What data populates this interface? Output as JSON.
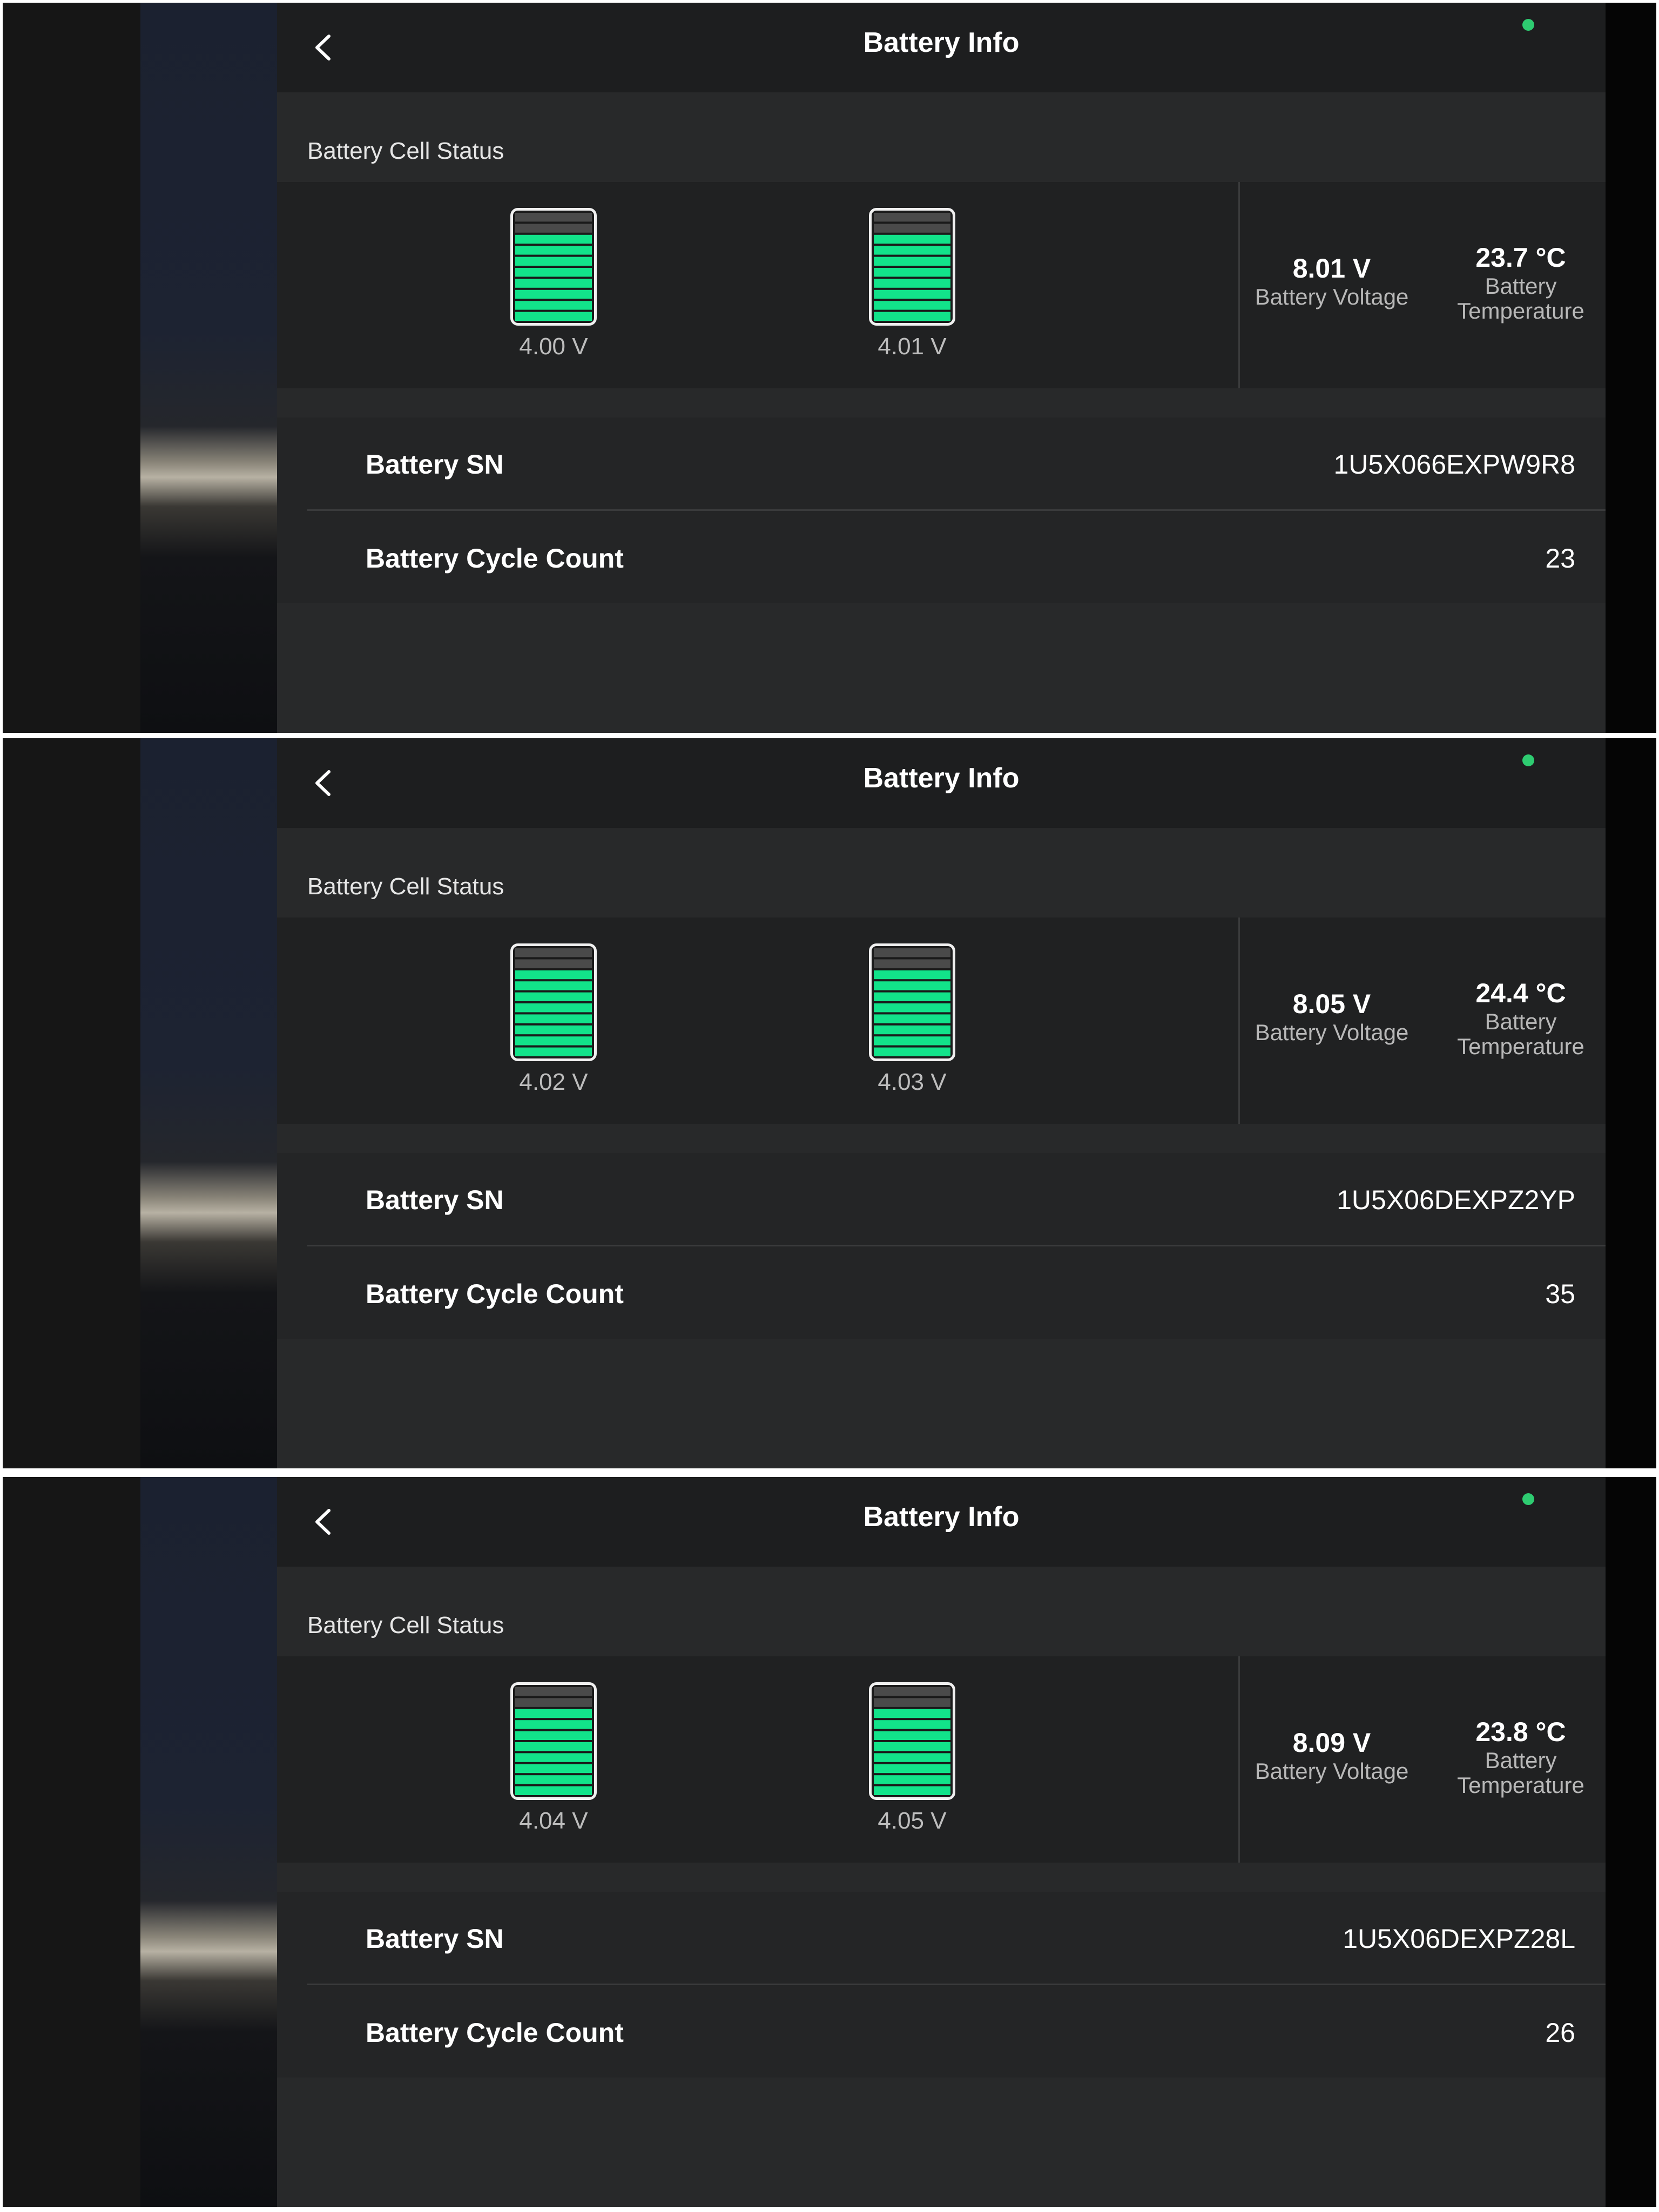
{
  "colors": {
    "accent_green": "#12e38a",
    "status_dot": "#2ecc71",
    "app_background": "#28292a"
  },
  "panels": [
    {
      "header": {
        "title": "Battery Info",
        "back_icon": "chevron-left-icon"
      },
      "cell_status_label": "Battery Cell Status",
      "cells": [
        {
          "voltage": "4.00 V",
          "charge_fraction": 0.8
        },
        {
          "voltage": "4.01 V",
          "charge_fraction": 0.8
        }
      ],
      "battery_voltage": {
        "value": "8.01 V",
        "label": "Battery Voltage"
      },
      "battery_temperature": {
        "value": "23.7 °C",
        "label_line1": "Battery",
        "label_line2": "Temperature"
      },
      "info": {
        "sn_label": "Battery SN",
        "sn_value": "1U5X066EXPW9R8",
        "cycle_label": "Battery Cycle Count",
        "cycle_value": "23"
      }
    },
    {
      "header": {
        "title": "Battery Info",
        "back_icon": "chevron-left-icon"
      },
      "cell_status_label": "Battery Cell Status",
      "cells": [
        {
          "voltage": "4.02 V",
          "charge_fraction": 0.8
        },
        {
          "voltage": "4.03 V",
          "charge_fraction": 0.8
        }
      ],
      "battery_voltage": {
        "value": "8.05 V",
        "label": "Battery Voltage"
      },
      "battery_temperature": {
        "value": "24.4 °C",
        "label_line1": "Battery",
        "label_line2": "Temperature"
      },
      "info": {
        "sn_label": "Battery SN",
        "sn_value": "1U5X06DEXPZ2YP",
        "cycle_label": "Battery Cycle Count",
        "cycle_value": "35"
      }
    },
    {
      "header": {
        "title": "Battery Info",
        "back_icon": "chevron-left-icon"
      },
      "cell_status_label": "Battery Cell Status",
      "cells": [
        {
          "voltage": "4.04 V",
          "charge_fraction": 0.8
        },
        {
          "voltage": "4.05 V",
          "charge_fraction": 0.8
        }
      ],
      "battery_voltage": {
        "value": "8.09 V",
        "label": "Battery Voltage"
      },
      "battery_temperature": {
        "value": "23.8 °C",
        "label_line1": "Battery",
        "label_line2": "Temperature"
      },
      "info": {
        "sn_label": "Battery SN",
        "sn_value": "1U5X06DEXPZ28L",
        "cycle_label": "Battery Cycle Count",
        "cycle_value": "26"
      }
    }
  ]
}
